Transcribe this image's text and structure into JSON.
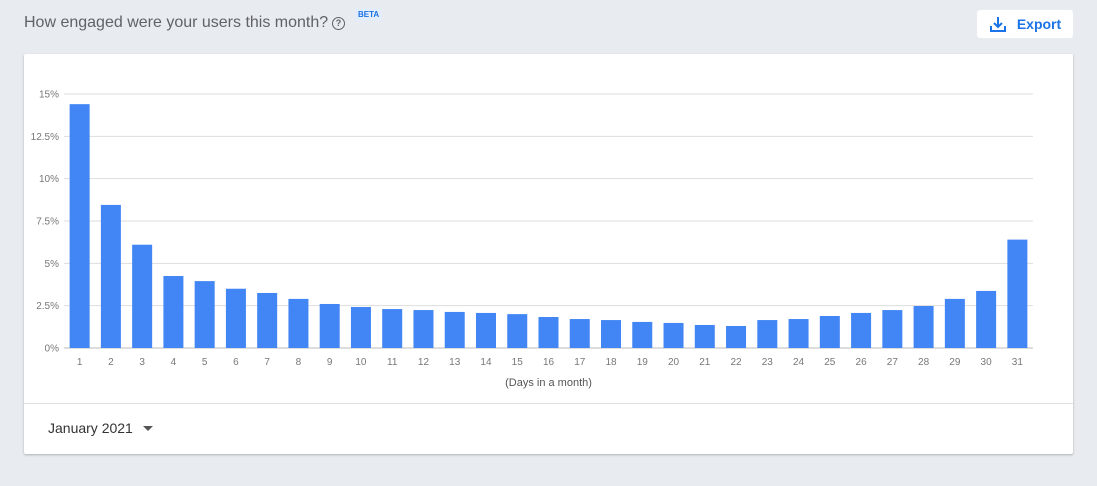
{
  "header": {
    "title": "How engaged were your users this month?",
    "badge": "BETA",
    "export_label": "Export"
  },
  "footer": {
    "month": "January 2021"
  },
  "colors": {
    "bar": "#4285f4",
    "accent": "#1a73e8"
  },
  "chart_data": {
    "type": "bar",
    "xlabel": "(Days in a month)",
    "ylabel": "",
    "ylim": [
      0,
      15
    ],
    "yticks": [
      0,
      2.5,
      5,
      7.5,
      10,
      12.5,
      15
    ],
    "ytick_labels": [
      "0%",
      "2.5%",
      "5%",
      "7.5%",
      "10%",
      "12.5%",
      "15%"
    ],
    "grid": true,
    "categories": [
      "1",
      "2",
      "3",
      "4",
      "5",
      "6",
      "7",
      "8",
      "9",
      "10",
      "11",
      "12",
      "13",
      "14",
      "15",
      "16",
      "17",
      "18",
      "19",
      "20",
      "21",
      "22",
      "23",
      "24",
      "25",
      "26",
      "27",
      "28",
      "29",
      "30",
      "31"
    ],
    "values": [
      14.4,
      8.45,
      6.1,
      4.25,
      3.95,
      3.5,
      3.25,
      2.9,
      2.6,
      2.42,
      2.3,
      2.24,
      2.13,
      2.07,
      2.0,
      1.83,
      1.71,
      1.65,
      1.54,
      1.48,
      1.36,
      1.3,
      1.65,
      1.71,
      1.89,
      2.07,
      2.24,
      2.48,
      2.9,
      3.37,
      6.4
    ]
  }
}
